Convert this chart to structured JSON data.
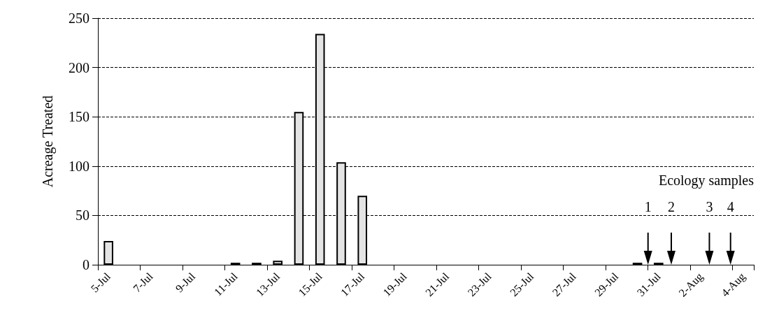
{
  "chart_data": {
    "type": "bar",
    "ylabel": "Acreage Treated",
    "categories": [
      "5-Jul",
      null,
      "7-Jul",
      null,
      "9-Jul",
      null,
      "11-Jul",
      null,
      "13-Jul",
      null,
      "15-Jul",
      null,
      "17-Jul",
      null,
      "19-Jul",
      null,
      "21-Jul",
      null,
      "23-Jul",
      null,
      "25-Jul",
      null,
      "27-Jul",
      null,
      "29-Jul",
      null,
      "31-Jul",
      null,
      "2-Aug",
      null,
      "4-Aug"
    ],
    "values": [
      24,
      0,
      0,
      0,
      0,
      0,
      2,
      2,
      4,
      155,
      234,
      104,
      70,
      0,
      0,
      0,
      0,
      0,
      0,
      0,
      0,
      0,
      0,
      0,
      0,
      2,
      2,
      0,
      0,
      0,
      0
    ],
    "color": "#e4e4e4",
    "ylim": [
      0,
      250
    ],
    "yticks": [
      0,
      50,
      100,
      150,
      200,
      250
    ],
    "grid": "y",
    "line_style": "dashed",
    "annotations": [
      "Ecology samples",
      "1",
      "2",
      "3",
      "4"
    ]
  }
}
